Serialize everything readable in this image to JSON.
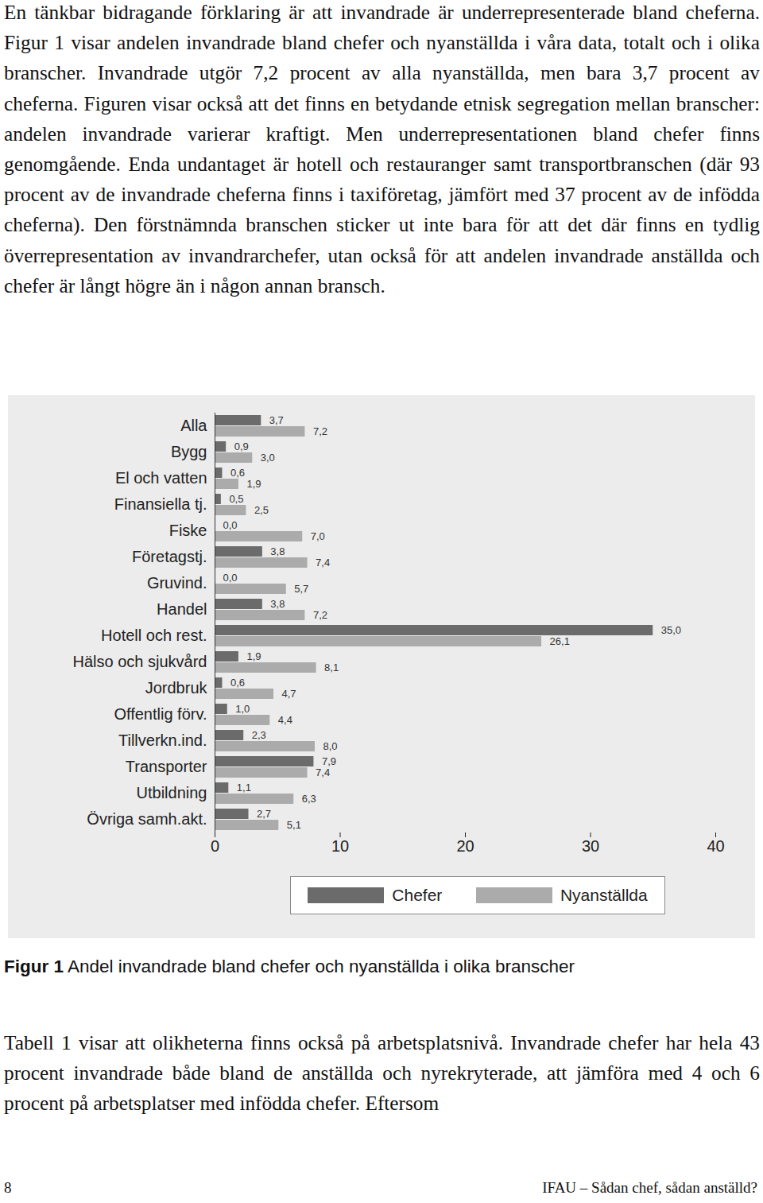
{
  "text_above": "En tänkbar bidragande förklaring är att invandrade är underrepresenterade bland cheferna. Figur 1 visar andelen invandrade bland chefer och nyanställda i våra data, totalt och i olika branscher. Invandrade utgör 7,2 procent av alla nyanställda, men bara 3,7 procent av cheferna. Figuren visar också att det finns en betydande etnisk segregation mellan branscher: andelen invandrade varierar kraftigt. Men underrepresentationen bland chefer finns genomgående. Enda undantaget är hotell och restauranger samt transportbranschen (där 93 procent av de invandrade cheferna finns i taxiföretag, jämfört med 37 procent av de infödda cheferna). Den förstnämnda branschen sticker ut inte bara för att det där finns en tydlig överrepresentation av invandrarchefer, utan också för att andelen invandrade anställda och chefer är långt högre än i någon annan bransch.",
  "chart_data": {
    "type": "bar",
    "orientation": "horizontal",
    "categories": [
      "Alla",
      "Bygg",
      "El och vatten",
      "Finansiella tj.",
      "Fiske",
      "Företagstj.",
      "Gruvind.",
      "Handel",
      "Hotell och rest.",
      "Hälso och sjukvård",
      "Jordbruk",
      "Offentlig förv.",
      "Tillverkn.ind.",
      "Transporter",
      "Utbildning",
      "Övriga samh.akt."
    ],
    "series": [
      {
        "name": "Chefer",
        "color": "#6b6b6b",
        "values": [
          3.7,
          0.9,
          0.6,
          0.5,
          0.0,
          3.8,
          0.0,
          3.8,
          35.0,
          1.9,
          0.6,
          1.0,
          2.3,
          7.9,
          1.1,
          2.7
        ],
        "value_labels": [
          "3,7",
          "0,9",
          "0,6",
          "0,5",
          "0,0",
          "3,8",
          "0,0",
          "3,8",
          "35,0",
          "1,9",
          "0,6",
          "1,0",
          "2,3",
          "7,9",
          "1,1",
          "2,7"
        ]
      },
      {
        "name": "Nyanställda",
        "color": "#ababab",
        "values": [
          7.2,
          3.0,
          1.9,
          2.5,
          7.0,
          7.4,
          5.7,
          7.2,
          26.1,
          8.1,
          4.7,
          4.4,
          8.0,
          7.4,
          6.3,
          5.1
        ],
        "value_labels": [
          "7,2",
          "3,0",
          "1,9",
          "2,5",
          "7,0",
          "7,4",
          "5,7",
          "7,2",
          "26,1",
          "8,1",
          "4,7",
          "4,4",
          "8,0",
          "7,4",
          "6,3",
          "5,1"
        ]
      }
    ],
    "xlim": [
      0,
      40
    ],
    "xticks": [
      0,
      10,
      20,
      30,
      40
    ],
    "data_labels": true,
    "grid": false,
    "legend": "bottom"
  },
  "figure_caption": {
    "label": "Figur 1",
    "text": "Andel invandrade bland chefer och nyanställda i olika branscher"
  },
  "text_below": "Tabell 1 visar att olikheterna finns också på arbetsplatsnivå. Invandrade chefer har hela 43 procent invandrade både bland de anställda och nyrekryterade, att jämföra med 4 och 6 procent på arbetsplatser med infödda chefer. Eftersom",
  "footer": {
    "page": "8",
    "text": "IFAU – Sådan chef, sådan anställd?"
  }
}
